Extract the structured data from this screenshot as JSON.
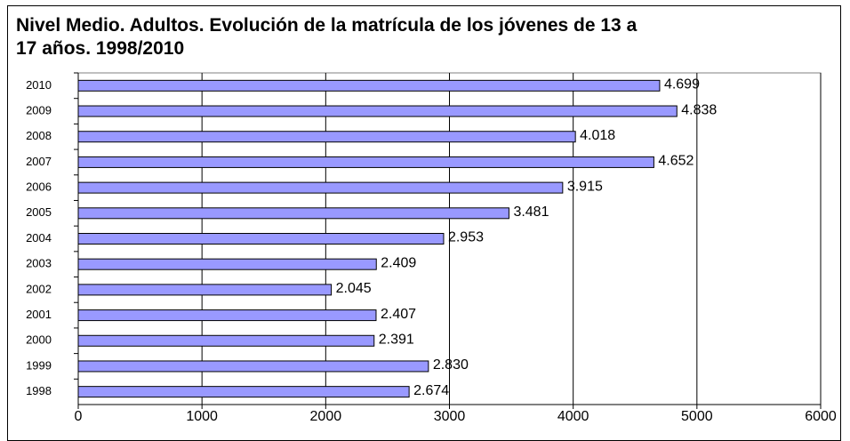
{
  "chart_data": {
    "type": "bar",
    "orientation": "horizontal",
    "title": "Nivel Medio. Adultos. Evolución de la matrícula de los jóvenes de 13 a 17 años. 1998/2010",
    "categories": [
      "2010",
      "2009",
      "2008",
      "2007",
      "2006",
      "2005",
      "2004",
      "2003",
      "2002",
      "2001",
      "2000",
      "1999",
      "1998"
    ],
    "values": [
      4699,
      4838,
      4018,
      4652,
      3915,
      3481,
      2953,
      2409,
      2045,
      2407,
      2391,
      2830,
      2674
    ],
    "value_labels": [
      "4.699",
      "4.838",
      "4.018",
      "4.652",
      "3.915",
      "3.481",
      "2.953",
      "2.409",
      "2.045",
      "2.407",
      "2.391",
      "2.830",
      "2.674"
    ],
    "color": "#9999ff",
    "xlim": [
      0,
      6000
    ],
    "xticks": [
      0,
      1000,
      2000,
      3000,
      4000,
      5000,
      6000
    ],
    "grid": true
  }
}
